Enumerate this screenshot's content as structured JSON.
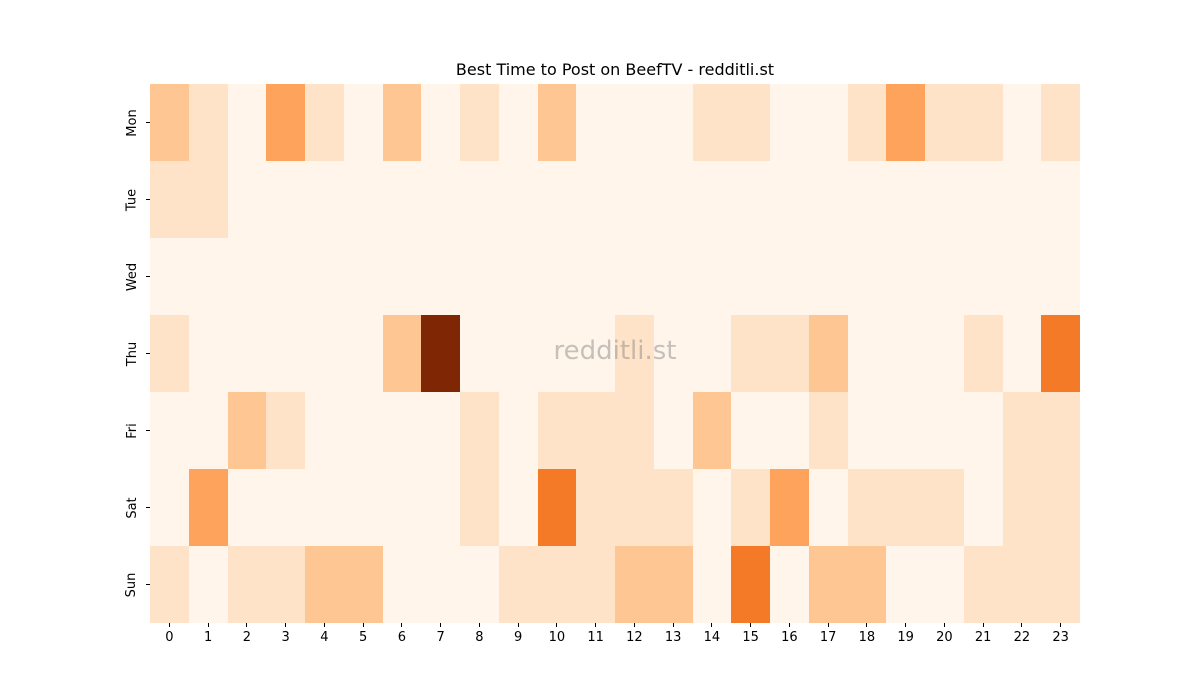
{
  "chart_data": {
    "type": "heatmap",
    "title": "Best Time to Post on BeefTV - redditli.st",
    "xlabel": "",
    "ylabel": "",
    "x": [
      "0",
      "1",
      "2",
      "3",
      "4",
      "5",
      "6",
      "7",
      "8",
      "9",
      "10",
      "11",
      "12",
      "13",
      "14",
      "15",
      "16",
      "17",
      "18",
      "19",
      "20",
      "21",
      "22",
      "23"
    ],
    "y": [
      "Mon",
      "Tue",
      "Wed",
      "Thu",
      "Fri",
      "Sat",
      "Sun"
    ],
    "colormap": "Oranges",
    "values": [
      [
        2,
        1,
        0,
        3,
        1,
        0,
        2,
        0,
        1,
        0,
        2,
        0,
        0,
        0,
        1,
        1,
        0,
        0,
        1,
        3,
        1,
        1,
        0,
        1
      ],
      [
        1,
        1,
        0,
        0,
        0,
        0,
        0,
        0,
        0,
        0,
        0,
        0,
        0,
        0,
        0,
        0,
        0,
        0,
        0,
        0,
        0,
        0,
        0,
        0
      ],
      [
        0,
        0,
        0,
        0,
        0,
        0,
        0,
        0,
        0,
        0,
        0,
        0,
        0,
        0,
        0,
        0,
        0,
        0,
        0,
        0,
        0,
        0,
        0,
        0
      ],
      [
        1,
        0,
        0,
        0,
        0,
        0,
        2,
        5,
        0,
        0,
        0,
        0,
        1,
        0,
        0,
        1,
        1,
        2,
        0,
        0,
        0,
        1,
        0,
        4
      ],
      [
        0,
        0,
        2,
        1,
        0,
        0,
        0,
        0,
        1,
        0,
        1,
        1,
        1,
        0,
        2,
        0,
        0,
        1,
        0,
        0,
        0,
        0,
        1,
        1
      ],
      [
        0,
        3,
        0,
        0,
        0,
        0,
        0,
        0,
        1,
        0,
        4,
        1,
        1,
        1,
        0,
        1,
        3,
        0,
        1,
        1,
        1,
        0,
        1,
        1
      ],
      [
        1,
        0,
        1,
        1,
        2,
        2,
        0,
        0,
        0,
        1,
        1,
        1,
        2,
        2,
        0,
        4,
        0,
        2,
        2,
        0,
        0,
        1,
        1,
        1
      ]
    ],
    "value_range": [
      0,
      5
    ],
    "grid": false,
    "legend": "none"
  },
  "palette": [
    "#fff5eb",
    "#fee3c8",
    "#fdc692",
    "#fda35c",
    "#f57a28",
    "#7f2704"
  ],
  "watermark": "redditli.st"
}
